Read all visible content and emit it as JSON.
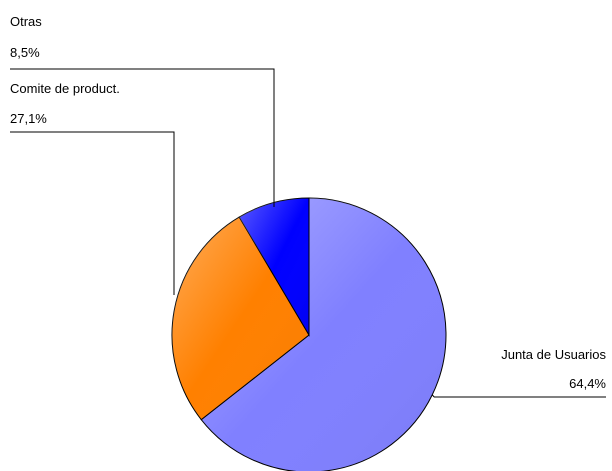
{
  "chart_data": {
    "type": "pie",
    "title": "",
    "slices": [
      {
        "label": "Junta de Usuarios",
        "value": 64.4,
        "value_label": "64,4%",
        "color": "#8080ff"
      },
      {
        "label": "Comite de product.",
        "value": 27.1,
        "value_label": "27,1%",
        "color": "#ff8000"
      },
      {
        "label": "Otras",
        "value": 8.5,
        "value_label": "8,5%",
        "color": "#0000ff"
      }
    ],
    "start_angle_deg": 0,
    "direction": "clockwise",
    "legend": "none",
    "data_labels": "outside-with-leader-lines"
  }
}
